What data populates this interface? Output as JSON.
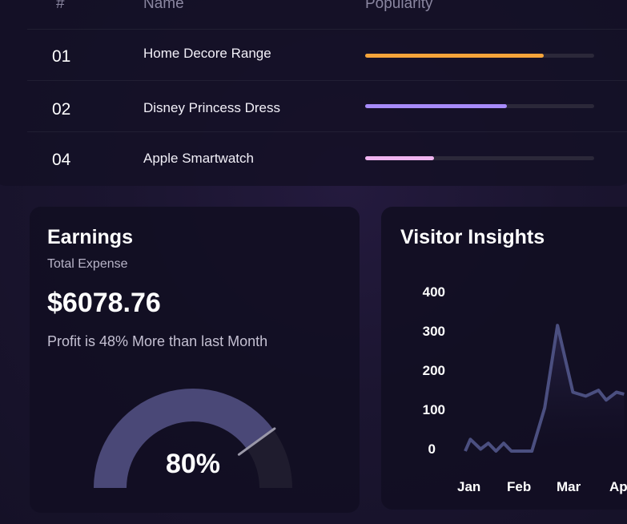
{
  "table": {
    "headers": {
      "num": "#",
      "name": "Name",
      "popularity": "Popularity"
    },
    "rows": [
      {
        "num": "01",
        "name": "Home Decore Range",
        "popularity": 0.78,
        "color": "#f5a43a"
      },
      {
        "num": "02",
        "name": "Disney Princess Dress",
        "popularity": 0.62,
        "color": "#a78bfa"
      },
      {
        "num": "04",
        "name": "Apple Smartwatch",
        "popularity": 0.3,
        "color": "#f0b4f0"
      }
    ]
  },
  "earnings": {
    "title": "Earnings",
    "subtitle": "Total Expense",
    "amount": "$6078.76",
    "profit_text": "Profit is 48% More than last Month",
    "gauge_label": "80%",
    "gauge_value": 0.8
  },
  "visitors": {
    "title": "Visitor Insights"
  },
  "chart_data": {
    "type": "line",
    "title": "Visitor Insights",
    "x_ticks": [
      "Jan",
      "Feb",
      "Mar",
      "Ap"
    ],
    "y_ticks": [
      "400",
      "300",
      "200",
      "100",
      "0"
    ],
    "ylim": [
      0,
      400
    ],
    "series": [
      {
        "color": "#4b4f80",
        "x": [
          0,
          0.1,
          0.3,
          0.45,
          0.6,
          0.75,
          0.9,
          1.1,
          1.3,
          1.55,
          1.8,
          2.1,
          2.35,
          2.6,
          2.75,
          2.95,
          3.1
        ],
        "values": [
          0,
          30,
          5,
          20,
          0,
          20,
          0,
          0,
          0,
          110,
          320,
          150,
          140,
          155,
          130,
          150,
          145
        ]
      }
    ]
  }
}
